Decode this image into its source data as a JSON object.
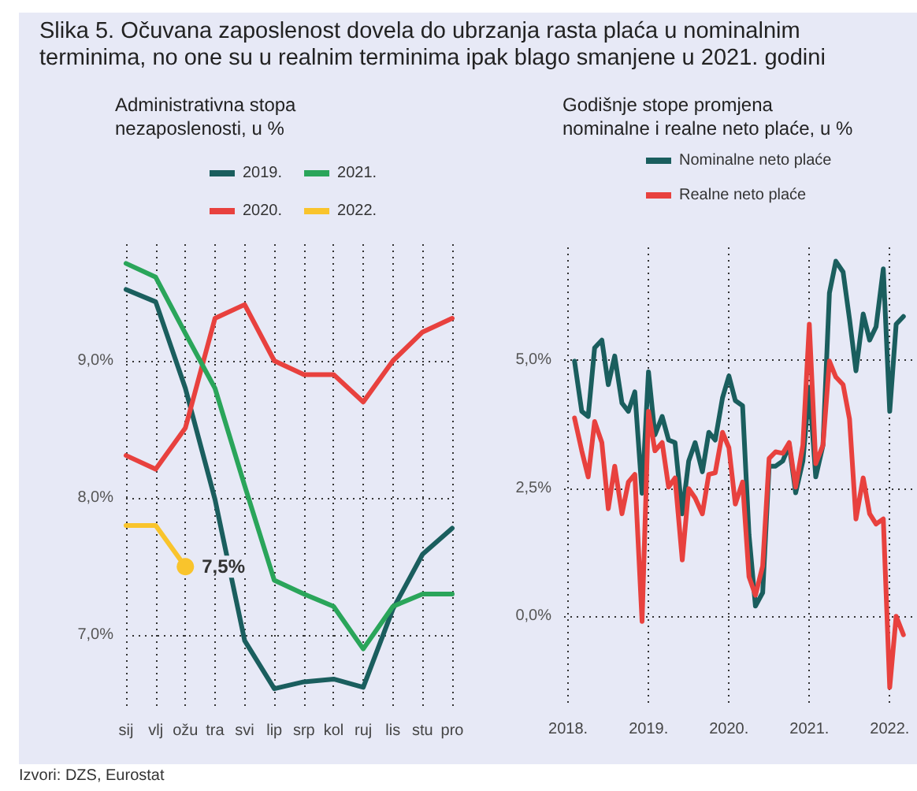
{
  "chart_data": [
    {
      "type": "line",
      "title": "Slika 5. Očuvana zaposlenost dovela do ubrzanja rasta plaća u nominalnim terminima, no one su u realnim terminima ipak blago smanjene u 2021. godini",
      "subtitle": "Administrativna stopa nezaposlenosti, u %",
      "categories": [
        "sij",
        "vlj",
        "ožu",
        "tra",
        "svi",
        "lip",
        "srp",
        "kol",
        "ruj",
        "lis",
        "stu",
        "pro"
      ],
      "series": [
        {
          "name": "2019.",
          "color": "#1a5e5e",
          "values": [
            9.52,
            9.43,
            8.8,
            7.99,
            6.96,
            6.61,
            6.66,
            6.68,
            6.62,
            7.19,
            7.59,
            7.78
          ]
        },
        {
          "name": "2020.",
          "color": "#e8413e",
          "values": [
            8.31,
            8.21,
            8.51,
            9.31,
            9.41,
            9.0,
            8.9,
            8.9,
            8.7,
            9.0,
            9.21,
            9.31
          ]
        },
        {
          "name": "2021.",
          "color": "#2aa55a",
          "values": [
            9.71,
            9.61,
            9.2,
            8.8,
            8.09,
            7.4,
            7.3,
            7.21,
            6.9,
            7.21,
            7.3,
            7.3
          ]
        },
        {
          "name": "2022.",
          "color": "#f9c42c",
          "values": [
            7.8,
            7.8,
            7.5,
            null,
            null,
            null,
            null,
            null,
            null,
            null,
            null,
            null
          ],
          "value_labels": [
            null,
            null,
            "7,5%",
            null,
            null,
            null,
            null,
            null,
            null,
            null,
            null,
            null
          ]
        }
      ],
      "ylim": [
        6.45,
        9.85
      ],
      "yticks": [
        {
          "value": 7,
          "label": "7,0%"
        },
        {
          "value": 8,
          "label": "8,0%"
        },
        {
          "value": 9,
          "label": "9,0%"
        }
      ],
      "grid": true,
      "legend": "top",
      "marker": "none",
      "annotations": [
        "Izvori: DZS, Eurostat"
      ]
    },
    {
      "type": "line",
      "title": "Godišnje stope promjena nominalne i realne neto plaće, u %",
      "x": [
        2018.08,
        2018.17,
        2018.25,
        2018.33,
        2018.42,
        2018.5,
        2018.58,
        2018.67,
        2018.75,
        2018.83,
        2018.92,
        2019,
        2019.08,
        2019.17,
        2019.25,
        2019.33,
        2019.42,
        2019.5,
        2019.58,
        2019.67,
        2019.75,
        2019.83,
        2019.92,
        2020,
        2020.08,
        2020.17,
        2020.25,
        2020.33,
        2020.42,
        2020.5,
        2020.58,
        2020.67,
        2020.75,
        2020.83,
        2020.92,
        2021,
        2021.08,
        2021.17,
        2021.25,
        2021.33,
        2021.42,
        2021.5,
        2021.58,
        2021.67,
        2021.75,
        2021.83,
        2021.92,
        2022,
        2022.08,
        2022.17
      ],
      "series": [
        {
          "name": "Nominalne neto plaće",
          "color": "#1a5e5e",
          "values": [
            4.98,
            4.0,
            3.9,
            5.24,
            5.39,
            4.52,
            5.08,
            4.16,
            4.0,
            4.38,
            2.4,
            4.77,
            3.54,
            3.9,
            3.44,
            3.39,
            2.0,
            3.03,
            3.39,
            2.82,
            3.59,
            3.44,
            4.26,
            4.69,
            4.21,
            4.11,
            1.59,
            0.2,
            0.46,
            2.93,
            2.93,
            3.03,
            3.34,
            2.41,
            3.03,
            4.47,
            2.72,
            3.34,
            6.31,
            6.93,
            6.72,
            5.8,
            4.79,
            5.9,
            5.39,
            5.65,
            6.78,
            4.0,
            5.7,
            5.85
          ]
        },
        {
          "name": "Realne neto plaće",
          "color": "#e8413e",
          "values": [
            3.87,
            3.23,
            2.72,
            3.8,
            3.39,
            2.1,
            2.93,
            2.0,
            2.62,
            2.77,
            -0.1,
            4.0,
            3.23,
            3.39,
            2.52,
            2.7,
            1.1,
            2.49,
            2.31,
            2.0,
            2.77,
            2.8,
            3.59,
            3.29,
            2.19,
            2.62,
            0.77,
            0.41,
            0.98,
            3.08,
            3.21,
            3.18,
            3.39,
            2.52,
            3.34,
            5.7,
            2.98,
            3.34,
            4.98,
            4.67,
            4.52,
            3.85,
            1.9,
            2.7,
            2.0,
            1.8,
            1.9,
            -1.39,
            0.0,
            -0.36
          ]
        }
      ],
      "xlim": [
        2017.95,
        2022.3
      ],
      "xticks": [
        {
          "value": 2018,
          "label": "2018."
        },
        {
          "value": 2019,
          "label": "2019."
        },
        {
          "value": 2020,
          "label": "2020."
        },
        {
          "value": 2021,
          "label": "2021."
        },
        {
          "value": 2022,
          "label": "2022."
        }
      ],
      "ylim": [
        -1.75,
        7.2
      ],
      "yticks": [
        {
          "value": 0,
          "label": "0,0%"
        },
        {
          "value": 2.5,
          "label": "2,5%"
        },
        {
          "value": 5,
          "label": "5,0%"
        }
      ],
      "grid": true,
      "legend": "top",
      "marker": "none"
    }
  ]
}
